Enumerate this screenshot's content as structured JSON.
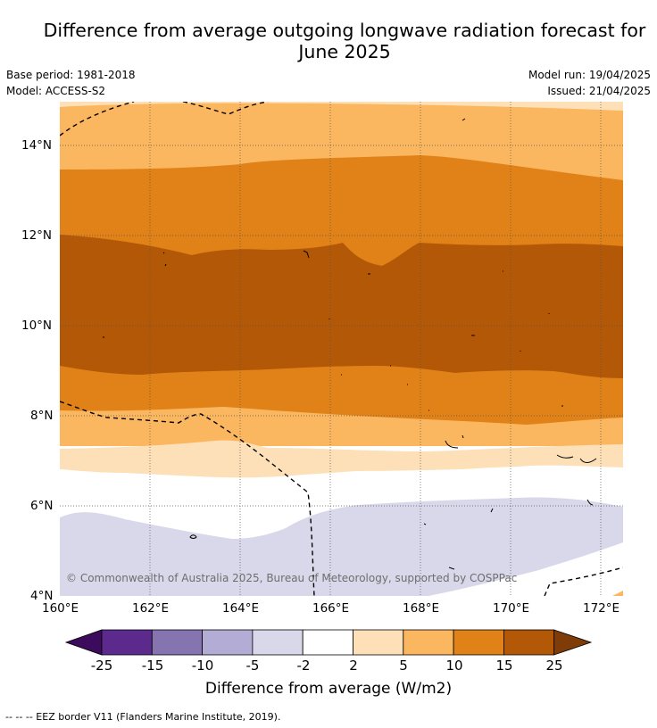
{
  "title_line1": "Difference from average outgoing longwave radiation forecast for",
  "title_line2": "June 2025",
  "base_period": "Base period: 1981-2018",
  "model": "Model: ACCESS-S2",
  "model_run": "Model run: 19/04/2025",
  "issued": "Issued: 21/04/2025",
  "copyright": "© Commonwealth of Australia 2025, Bureau of Meteorology, supported by COSPPac",
  "lat_labels": [
    "14°N",
    "12°N",
    "10°N",
    "8°N",
    "6°N",
    "4°N"
  ],
  "lon_labels": [
    "160°E",
    "162°E",
    "164°E",
    "166°E",
    "168°E",
    "170°E",
    "172°E"
  ],
  "colorbar": {
    "ticks": [
      "-25",
      "-15",
      "-10",
      "-5",
      "-2",
      "2",
      "5",
      "10",
      "15",
      "25"
    ],
    "label": "Difference from average (W/m2)",
    "colors": [
      "#3d0b5e",
      "#5b2a8c",
      "#8574b0",
      "#b3acd4",
      "#d8d8ea",
      "#ffffff",
      "#fde0b7",
      "#fbb660",
      "#e08218",
      "#b35806",
      "#7f3b08"
    ]
  },
  "legend_footer": "--  --  -- EEZ border V11 (Flanders Marine Institute, 2019)."
}
